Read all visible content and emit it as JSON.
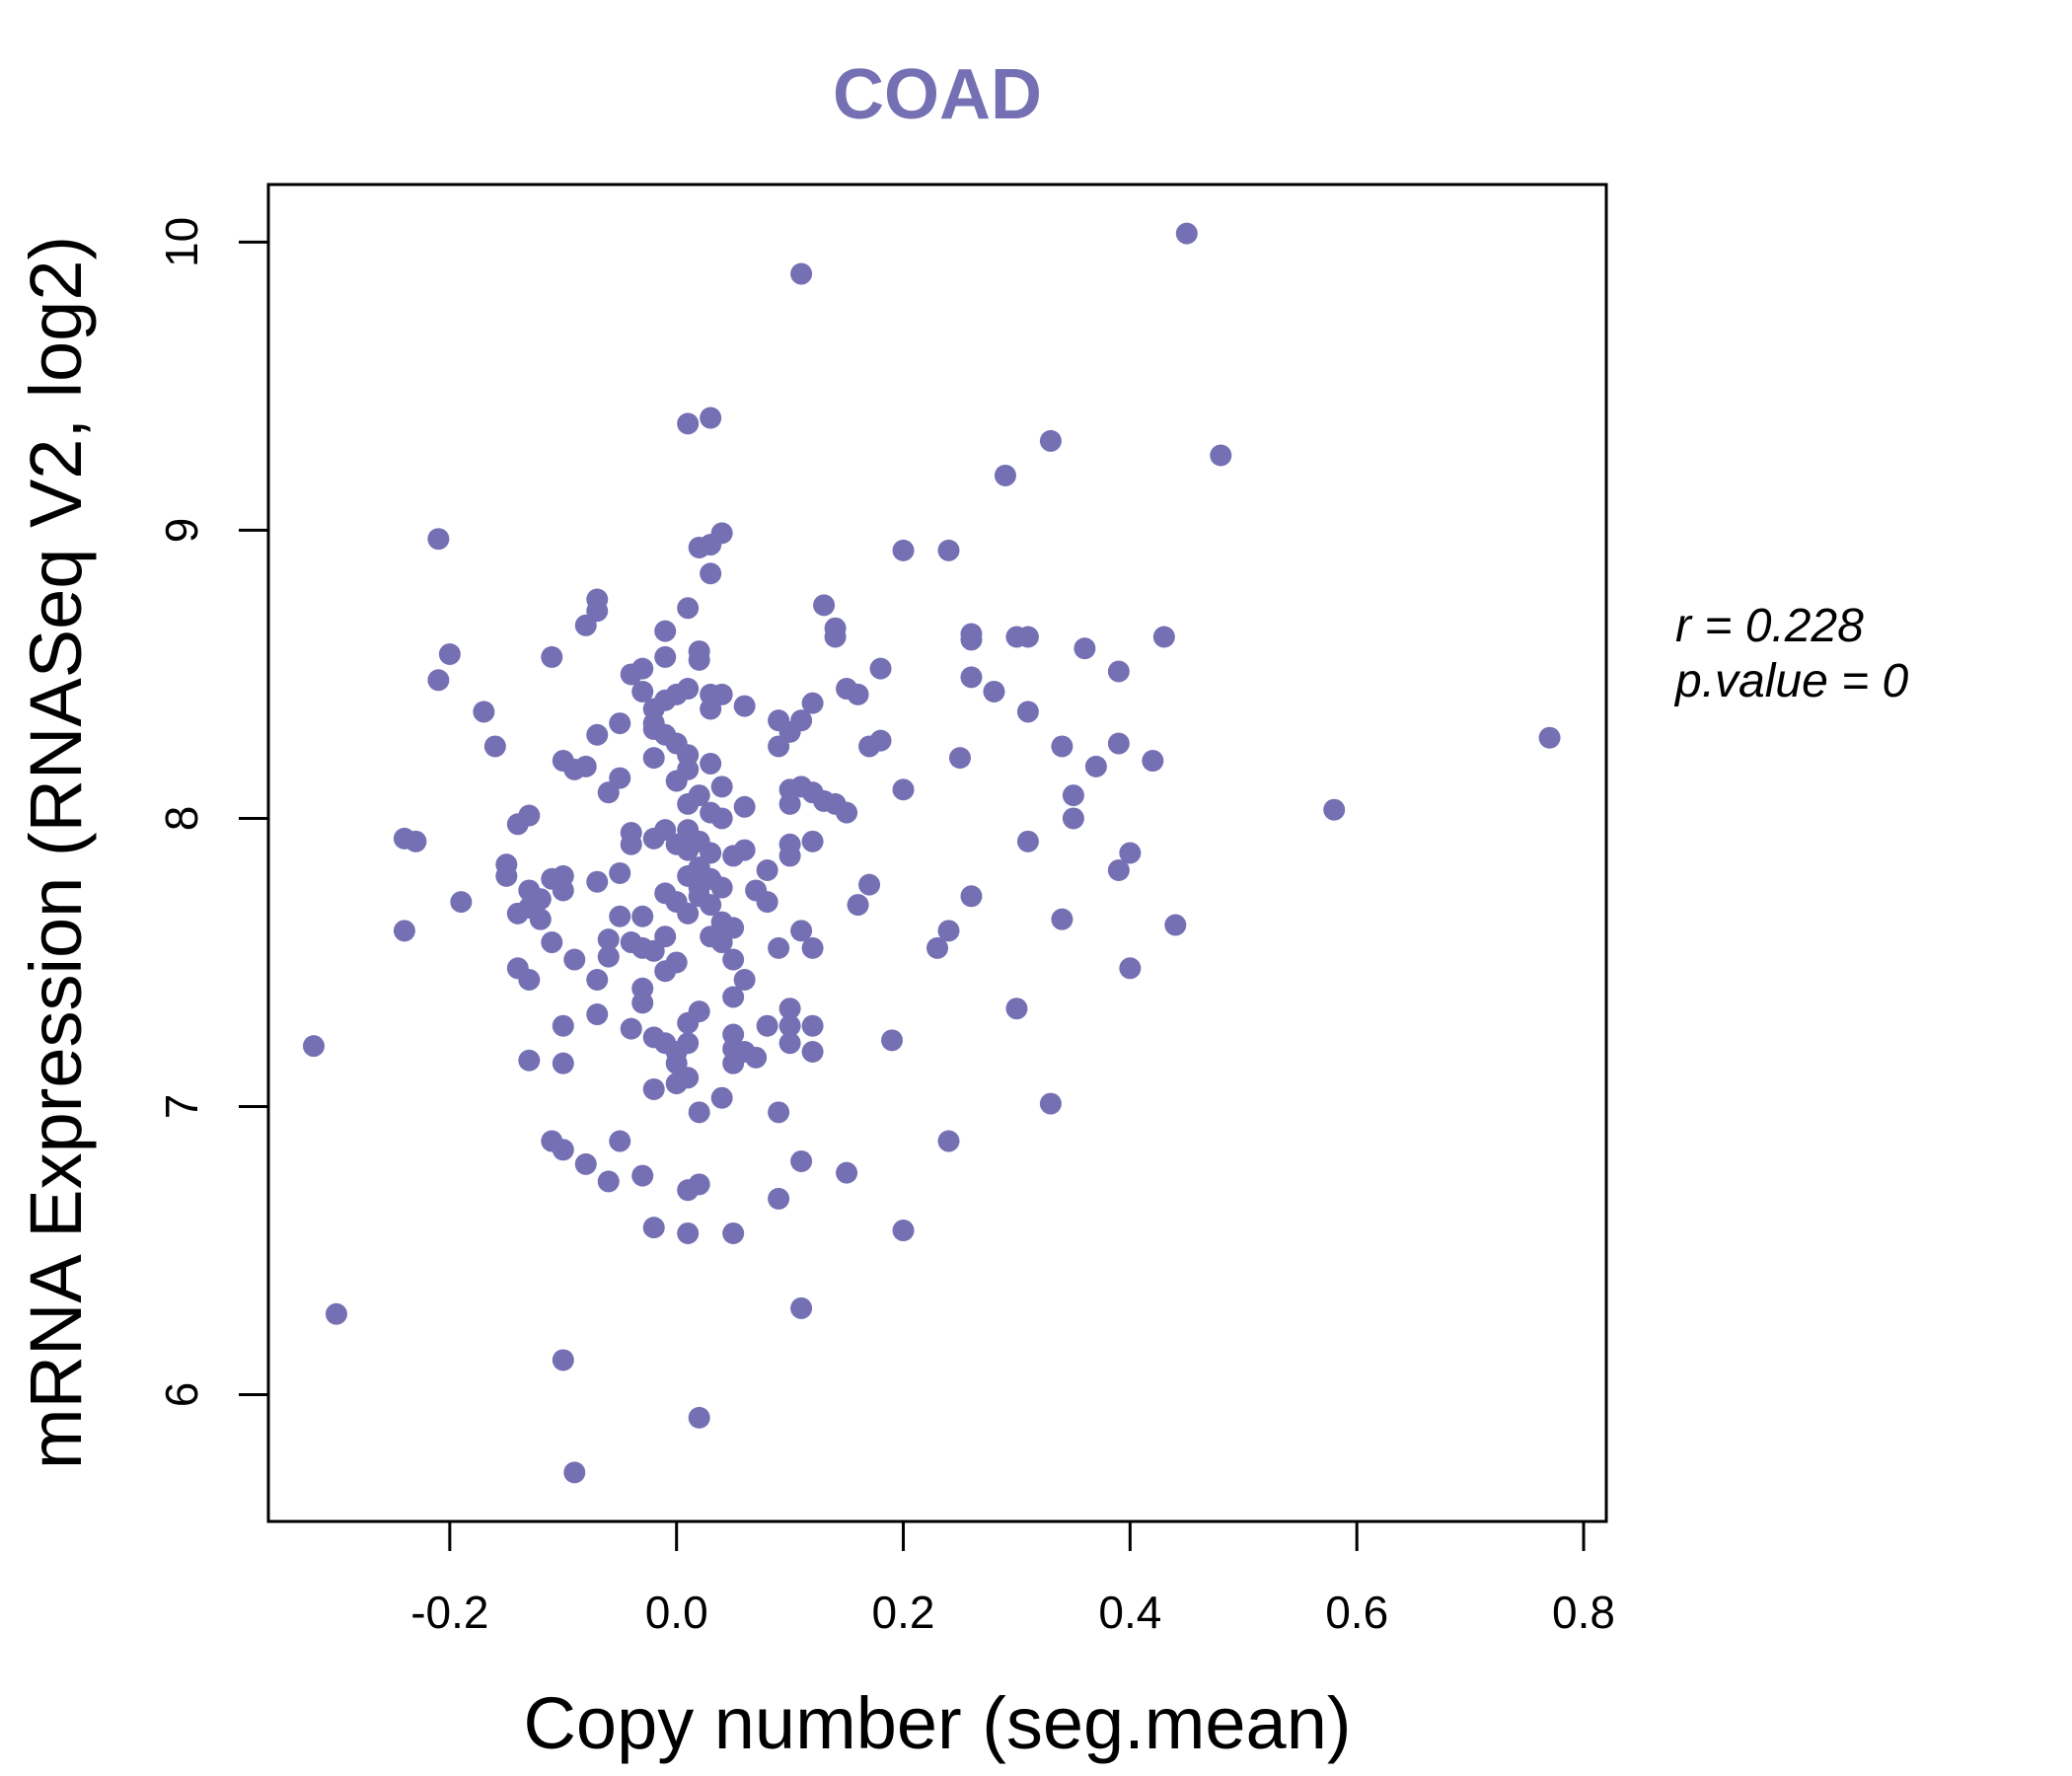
{
  "chart_data": {
    "type": "scatter",
    "title": "COAD",
    "xlabel": "Copy number (seg.mean)",
    "ylabel": "mRNA Expression (RNASeq V2, log2)",
    "xlim": [
      -0.36,
      0.82
    ],
    "ylim": [
      5.56,
      10.2
    ],
    "x_ticks": [
      -0.2,
      0.0,
      0.2,
      0.4,
      0.6,
      0.8
    ],
    "x_tick_labels": [
      "-0.2",
      "0.0",
      "0.2",
      "0.4",
      "0.6",
      "0.8"
    ],
    "y_ticks": [
      6,
      7,
      8,
      9,
      10
    ],
    "y_tick_labels": [
      "6",
      "7",
      "8",
      "9",
      "10"
    ],
    "grid": false,
    "point_color": "#7570b3",
    "annotations": {
      "r_label": "r = 0.228",
      "p_label": "p.value = 0"
    },
    "points": [
      [
        -0.32,
        7.21
      ],
      [
        -0.3,
        6.28
      ],
      [
        -0.24,
        7.93
      ],
      [
        -0.24,
        7.61
      ],
      [
        -0.23,
        7.92
      ],
      [
        -0.21,
        8.48
      ],
      [
        -0.21,
        8.97
      ],
      [
        -0.2,
        8.57
      ],
      [
        -0.19,
        7.71
      ],
      [
        -0.17,
        8.37
      ],
      [
        -0.16,
        8.25
      ],
      [
        -0.15,
        7.84
      ],
      [
        -0.15,
        7.8
      ],
      [
        -0.14,
        7.67
      ],
      [
        -0.14,
        7.98
      ],
      [
        -0.14,
        7.48
      ],
      [
        -0.13,
        8.01
      ],
      [
        -0.13,
        7.75
      ],
      [
        -0.13,
        7.69
      ],
      [
        -0.13,
        7.16
      ],
      [
        -0.13,
        7.44
      ],
      [
        -0.12,
        7.65
      ],
      [
        -0.12,
        7.72
      ],
      [
        -0.11,
        8.56
      ],
      [
        -0.11,
        7.57
      ],
      [
        -0.11,
        7.79
      ],
      [
        -0.11,
        6.88
      ],
      [
        -0.1,
        8.2
      ],
      [
        -0.1,
        7.8
      ],
      [
        -0.1,
        6.12
      ],
      [
        -0.1,
        7.75
      ],
      [
        -0.1,
        7.15
      ],
      [
        -0.1,
        7.28
      ],
      [
        -0.1,
        6.85
      ],
      [
        -0.09,
        8.17
      ],
      [
        -0.09,
        7.51
      ],
      [
        -0.09,
        5.73
      ],
      [
        -0.08,
        8.67
      ],
      [
        -0.08,
        8.18
      ],
      [
        -0.08,
        6.8
      ],
      [
        -0.07,
        8.76
      ],
      [
        -0.07,
        8.29
      ],
      [
        -0.07,
        8.72
      ],
      [
        -0.07,
        7.78
      ],
      [
        -0.07,
        7.44
      ],
      [
        -0.07,
        7.32
      ],
      [
        -0.06,
        8.09
      ],
      [
        -0.06,
        7.58
      ],
      [
        -0.06,
        7.52
      ],
      [
        -0.06,
        6.74
      ],
      [
        -0.05,
        8.14
      ],
      [
        -0.05,
        7.66
      ],
      [
        -0.05,
        8.33
      ],
      [
        -0.05,
        7.81
      ],
      [
        -0.05,
        6.88
      ],
      [
        -0.04,
        8.5
      ],
      [
        -0.04,
        7.91
      ],
      [
        -0.04,
        7.95
      ],
      [
        -0.04,
        7.27
      ],
      [
        -0.04,
        7.57
      ],
      [
        -0.03,
        8.44
      ],
      [
        -0.03,
        8.52
      ],
      [
        -0.03,
        7.66
      ],
      [
        -0.03,
        7.55
      ],
      [
        -0.03,
        7.36
      ],
      [
        -0.03,
        6.76
      ],
      [
        -0.03,
        7.41
      ],
      [
        -0.02,
        8.33
      ],
      [
        -0.02,
        8.31
      ],
      [
        -0.02,
        8.21
      ],
      [
        -0.02,
        8.38
      ],
      [
        -0.02,
        7.93
      ],
      [
        -0.02,
        7.24
      ],
      [
        -0.02,
        6.58
      ],
      [
        -0.02,
        7.06
      ],
      [
        -0.02,
        7.54
      ],
      [
        -0.01,
        8.65
      ],
      [
        -0.01,
        8.56
      ],
      [
        -0.01,
        8.41
      ],
      [
        -0.01,
        8.29
      ],
      [
        -0.01,
        7.96
      ],
      [
        -0.01,
        7.74
      ],
      [
        -0.01,
        7.47
      ],
      [
        -0.01,
        7.59
      ],
      [
        -0.01,
        7.22
      ],
      [
        0.0,
        8.43
      ],
      [
        0.0,
        8.26
      ],
      [
        0.0,
        8.13
      ],
      [
        0.0,
        7.91
      ],
      [
        0.0,
        7.5
      ],
      [
        0.0,
        7.71
      ],
      [
        0.0,
        7.19
      ],
      [
        0.0,
        7.15
      ],
      [
        0.0,
        7.08
      ],
      [
        0.01,
        8.45
      ],
      [
        0.01,
        8.17
      ],
      [
        0.01,
        8.22
      ],
      [
        0.01,
        8.05
      ],
      [
        0.01,
        7.96
      ],
      [
        0.01,
        7.89
      ],
      [
        0.01,
        7.8
      ],
      [
        0.01,
        7.67
      ],
      [
        0.01,
        7.29
      ],
      [
        0.01,
        7.22
      ],
      [
        0.01,
        7.1
      ],
      [
        0.01,
        6.71
      ],
      [
        0.01,
        6.56
      ],
      [
        0.01,
        9.37
      ],
      [
        0.01,
        8.73
      ],
      [
        0.02,
        8.94
      ],
      [
        0.02,
        8.58
      ],
      [
        0.02,
        8.55
      ],
      [
        0.02,
        8.08
      ],
      [
        0.02,
        7.92
      ],
      [
        0.02,
        7.83
      ],
      [
        0.02,
        7.76
      ],
      [
        0.02,
        7.73
      ],
      [
        0.02,
        7.33
      ],
      [
        0.02,
        6.98
      ],
      [
        0.02,
        6.73
      ],
      [
        0.02,
        5.92
      ],
      [
        0.03,
        8.38
      ],
      [
        0.03,
        8.43
      ],
      [
        0.03,
        8.19
      ],
      [
        0.03,
        8.02
      ],
      [
        0.03,
        7.88
      ],
      [
        0.03,
        7.79
      ],
      [
        0.03,
        7.7
      ],
      [
        0.03,
        7.59
      ],
      [
        0.03,
        8.85
      ],
      [
        0.03,
        9.39
      ],
      [
        0.03,
        8.95
      ],
      [
        0.04,
        8.99
      ],
      [
        0.04,
        8.43
      ],
      [
        0.04,
        8.11
      ],
      [
        0.04,
        8.0
      ],
      [
        0.04,
        7.76
      ],
      [
        0.04,
        7.64
      ],
      [
        0.04,
        7.57
      ],
      [
        0.04,
        7.03
      ],
      [
        0.05,
        7.51
      ],
      [
        0.05,
        7.38
      ],
      [
        0.05,
        7.25
      ],
      [
        0.05,
        7.15
      ],
      [
        0.05,
        7.87
      ],
      [
        0.05,
        7.62
      ],
      [
        0.05,
        7.2
      ],
      [
        0.05,
        6.56
      ],
      [
        0.06,
        8.04
      ],
      [
        0.06,
        7.89
      ],
      [
        0.06,
        7.19
      ],
      [
        0.06,
        7.44
      ],
      [
        0.06,
        8.39
      ],
      [
        0.07,
        7.75
      ],
      [
        0.07,
        7.17
      ],
      [
        0.08,
        7.28
      ],
      [
        0.08,
        7.71
      ],
      [
        0.08,
        7.82
      ],
      [
        0.09,
        7.55
      ],
      [
        0.09,
        8.34
      ],
      [
        0.09,
        8.25
      ],
      [
        0.09,
        6.68
      ],
      [
        0.09,
        6.98
      ],
      [
        0.1,
        8.1
      ],
      [
        0.1,
        8.05
      ],
      [
        0.1,
        8.3
      ],
      [
        0.1,
        7.91
      ],
      [
        0.1,
        7.87
      ],
      [
        0.1,
        7.34
      ],
      [
        0.1,
        7.22
      ],
      [
        0.1,
        7.28
      ],
      [
        0.11,
        9.89
      ],
      [
        0.11,
        8.34
      ],
      [
        0.11,
        8.11
      ],
      [
        0.11,
        7.61
      ],
      [
        0.11,
        6.81
      ],
      [
        0.11,
        6.3
      ],
      [
        0.12,
        8.4
      ],
      [
        0.12,
        8.09
      ],
      [
        0.12,
        7.55
      ],
      [
        0.12,
        7.28
      ],
      [
        0.12,
        7.92
      ],
      [
        0.12,
        7.19
      ],
      [
        0.13,
        8.74
      ],
      [
        0.13,
        8.06
      ],
      [
        0.14,
        8.63
      ],
      [
        0.14,
        8.66
      ],
      [
        0.14,
        8.05
      ],
      [
        0.15,
        8.02
      ],
      [
        0.15,
        8.45
      ],
      [
        0.15,
        6.77
      ],
      [
        0.16,
        8.43
      ],
      [
        0.16,
        7.7
      ],
      [
        0.17,
        8.25
      ],
      [
        0.17,
        7.77
      ],
      [
        0.18,
        8.27
      ],
      [
        0.18,
        8.52
      ],
      [
        0.19,
        7.23
      ],
      [
        0.2,
        6.57
      ],
      [
        0.2,
        8.93
      ],
      [
        0.2,
        8.1
      ],
      [
        0.23,
        7.55
      ],
      [
        0.24,
        8.93
      ],
      [
        0.24,
        7.61
      ],
      [
        0.24,
        6.88
      ],
      [
        0.25,
        8.21
      ],
      [
        0.26,
        7.73
      ],
      [
        0.26,
        8.64
      ],
      [
        0.26,
        8.62
      ],
      [
        0.26,
        8.49
      ],
      [
        0.28,
        8.44
      ],
      [
        0.29,
        9.19
      ],
      [
        0.3,
        8.63
      ],
      [
        0.3,
        7.34
      ],
      [
        0.31,
        8.63
      ],
      [
        0.31,
        8.37
      ],
      [
        0.31,
        7.92
      ],
      [
        0.33,
        9.31
      ],
      [
        0.33,
        7.01
      ],
      [
        0.34,
        8.25
      ],
      [
        0.34,
        7.65
      ],
      [
        0.35,
        8.08
      ],
      [
        0.35,
        8.0
      ],
      [
        0.36,
        8.59
      ],
      [
        0.37,
        8.18
      ],
      [
        0.39,
        8.51
      ],
      [
        0.39,
        8.26
      ],
      [
        0.39,
        7.82
      ],
      [
        0.4,
        7.88
      ],
      [
        0.4,
        7.48
      ],
      [
        0.42,
        8.2
      ],
      [
        0.43,
        8.63
      ],
      [
        0.44,
        7.63
      ],
      [
        0.45,
        10.03
      ],
      [
        0.48,
        9.26
      ],
      [
        0.58,
        8.03
      ],
      [
        0.77,
        8.28
      ]
    ]
  }
}
